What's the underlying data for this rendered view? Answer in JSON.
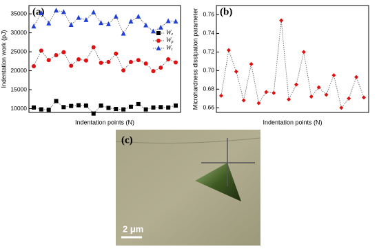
{
  "chart_data": [
    {
      "type": "line",
      "label": "(a)",
      "x_label": "Indentation points (N)",
      "y_label": "Indentation work (pJ)",
      "categories": [
        null,
        null,
        null,
        null,
        null,
        null,
        null,
        null,
        null,
        null,
        null,
        null,
        null,
        null,
        null,
        null,
        null,
        null,
        null,
        null
      ],
      "ylim": [
        9000,
        37200
      ],
      "yticks": [
        10000,
        15000,
        20000,
        25000,
        30000,
        35000
      ],
      "legend": "upper right",
      "series": [
        {
          "name": "We",
          "color": "#000000",
          "marker": "square",
          "values": [
            10300,
            9800,
            9700,
            12000,
            10400,
            10700,
            10900,
            10800,
            8700,
            10800,
            10200,
            9900,
            9800,
            10500,
            11200,
            9800,
            10300,
            10400,
            10300,
            10800
          ]
        },
        {
          "name": "Wp",
          "color": "#e01010",
          "marker": "circle",
          "values": [
            21200,
            25300,
            22800,
            24100,
            24900,
            21300,
            23000,
            22700,
            26200,
            22100,
            22300,
            24500,
            20100,
            22300,
            22800,
            21900,
            19900,
            20800,
            23000,
            22200
          ]
        },
        {
          "name": "Wt",
          "color": "#1f3fd6",
          "marker": "triangle",
          "values": [
            31700,
            35200,
            32500,
            35900,
            35500,
            32100,
            34000,
            33400,
            35400,
            32600,
            32300,
            34300,
            29800,
            33000,
            34300,
            32000,
            30400,
            31400,
            33100,
            33000
          ]
        }
      ]
    },
    {
      "type": "line",
      "label": "(b)",
      "x_label": "Indentation points (N)",
      "y_label": "Microhardness dissipation parameter",
      "categories": [
        null,
        null,
        null,
        null,
        null,
        null,
        null,
        null,
        null,
        null,
        null,
        null,
        null,
        null,
        null,
        null,
        null,
        null,
        null,
        null
      ],
      "ylim": [
        0.655,
        0.77
      ],
      "yticks": [
        0.66,
        0.68,
        {
          "value": 0.7,
          "label": "0.70"
        },
        0.72,
        0.74,
        0.76
      ],
      "series": [
        {
          "color": "#e01010",
          "marker": "diamond",
          "values": [
            0.673,
            0.722,
            0.699,
            0.668,
            0.707,
            0.665,
            0.677,
            0.676,
            0.754,
            0.669,
            0.685,
            0.72,
            0.672,
            0.682,
            0.674,
            0.695,
            0.66,
            0.67,
            0.693,
            0.671
          ]
        }
      ]
    }
  ],
  "image_panel": {
    "label": "(c)",
    "scale_bar": "2 μm"
  }
}
